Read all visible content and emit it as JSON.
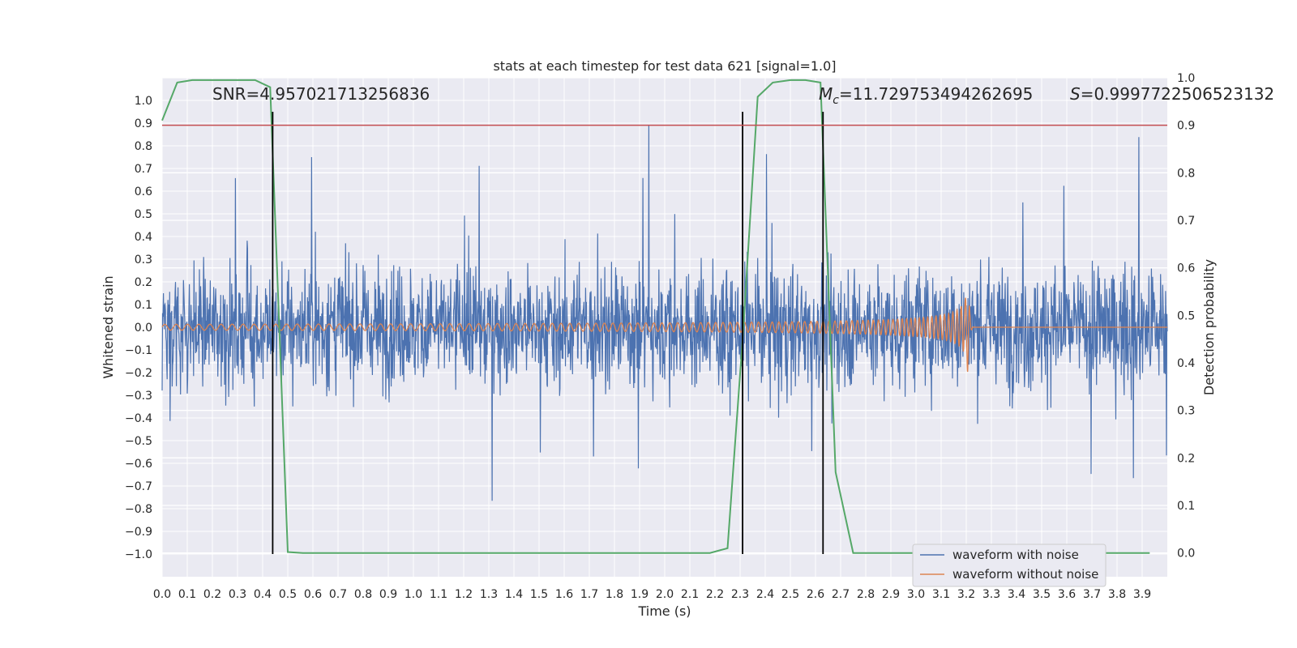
{
  "chart_data": {
    "type": "line",
    "title": "stats at each timestep for test data 621 [signal=1.0]",
    "xlabel": "Time (s)",
    "ylabel": "Whitened strain",
    "ylabel_right": "Detection probability",
    "xlim": [
      0.0,
      4.0
    ],
    "ylim": [
      -1.1,
      1.1
    ],
    "ylim_right": [
      -0.05,
      1.0
    ],
    "x_ticks": [
      0.0,
      0.1,
      0.2,
      0.3,
      0.4,
      0.5,
      0.6,
      0.7,
      0.8,
      0.9,
      1.0,
      1.1,
      1.2,
      1.3,
      1.4,
      1.5,
      1.6,
      1.7,
      1.8,
      1.9,
      2.0,
      2.1,
      2.2,
      2.3,
      2.4,
      2.5,
      2.6,
      2.7,
      2.8,
      2.9,
      3.0,
      3.1,
      3.2,
      3.3,
      3.4,
      3.5,
      3.6,
      3.7,
      3.8,
      3.9
    ],
    "y_ticks": [
      -1.0,
      -0.9,
      -0.8,
      -0.7,
      -0.6,
      -0.5,
      -0.4,
      -0.3,
      -0.2,
      -0.1,
      0.0,
      0.1,
      0.2,
      0.3,
      0.4,
      0.5,
      0.6,
      0.7,
      0.8,
      0.9,
      1.0
    ],
    "y_ticks_right": [
      0.0,
      0.1,
      0.2,
      0.3,
      0.4,
      0.5,
      0.6,
      0.7,
      0.8,
      0.9,
      1.0
    ],
    "grid": true,
    "legend_placement": "lower-right",
    "annotations": {
      "snr": "SNR=4.957021713256836",
      "mc_symbol": "M",
      "mc_sub": "c",
      "mc_value": "=11.729753494262695",
      "s_symbol": "S",
      "s_value": "=0.9997722506523132"
    },
    "series": [
      {
        "name": "waveform with noise",
        "color": "#4c72b0",
        "description_values": "dense random noise spanning roughly -0.7 to 0.7, peaks to ~0.94 and ~-1.0"
      },
      {
        "name": "waveform without noise",
        "color": "#dd8452",
        "chirp": {
          "start_amplitude": 0.013,
          "end_amplitude": 0.2,
          "merger_time": 3.21,
          "start_freq_hz": 22,
          "end_freq_hz": 60
        }
      },
      {
        "name": "detection probability",
        "axis": "right",
        "color": "#55a868",
        "x": [
          0.0,
          0.06,
          0.12,
          0.18,
          0.25,
          0.31,
          0.37,
          0.43,
          0.5,
          0.56,
          0.62,
          0.68,
          0.75,
          0.81,
          0.87,
          0.93,
          1.0,
          1.06,
          1.12,
          1.18,
          1.25,
          1.31,
          1.37,
          1.43,
          1.5,
          1.56,
          1.62,
          1.68,
          1.75,
          1.81,
          1.87,
          1.93,
          2.0,
          2.06,
          2.12,
          2.18,
          2.25,
          2.31,
          2.37,
          2.43,
          2.5,
          2.56,
          2.62,
          2.68,
          2.75,
          2.81,
          2.87,
          2.93,
          3.0,
          3.06,
          3.12,
          3.18,
          3.25,
          3.31,
          3.37,
          3.43,
          3.5,
          3.56,
          3.62,
          3.68,
          3.75,
          3.81,
          3.87,
          3.93
        ],
        "values": [
          0.91,
          0.99,
          0.995,
          0.995,
          0.995,
          0.995,
          0.995,
          0.98,
          0.002,
          0.0,
          0.0,
          0.0,
          0.0,
          0.0,
          0.0,
          0.0,
          0.0,
          0.0,
          0.0,
          0.0,
          0.0,
          0.0,
          0.0,
          0.0,
          0.0,
          0.0,
          0.0,
          0.0,
          0.0,
          0.0,
          0.0,
          0.0,
          0.0,
          0.0,
          0.0,
          0.0,
          0.01,
          0.45,
          0.96,
          0.99,
          0.995,
          0.995,
          0.99,
          0.17,
          0.0,
          0.0,
          0.0,
          0.0,
          0.0,
          0.0,
          0.0,
          0.0,
          0.0,
          0.0,
          0.0,
          0.0,
          0.0,
          0.0,
          0.0,
          0.0,
          0.0,
          0.0,
          0.0,
          0.0
        ]
      }
    ],
    "threshold": {
      "axis": "right",
      "value": 0.9,
      "color": "#c44e52"
    },
    "vlines": [
      0.44,
      2.31,
      2.63
    ],
    "vline_range": [
      -1.0,
      0.95
    ]
  }
}
